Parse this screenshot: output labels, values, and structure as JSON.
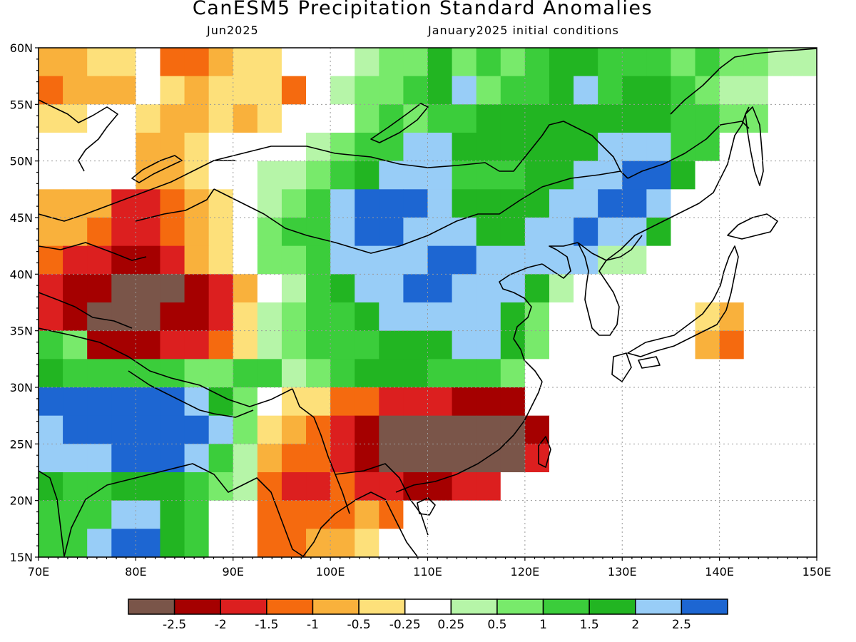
{
  "title": "CanESM5 Precipitation Standard Anomalies",
  "subtitle_left": "Jun2025",
  "subtitle_right": "January2025 initial conditions",
  "lat_labels": [
    "60N",
    "55N",
    "50N",
    "45N",
    "40N",
    "35N",
    "30N",
    "25N",
    "20N",
    "15N"
  ],
  "lon_labels": [
    "70E",
    "80E",
    "90E",
    "100E",
    "110E",
    "120E",
    "130E",
    "140E",
    "150E"
  ],
  "colorbar": {
    "colors": [
      "#7a5549",
      "#a50000",
      "#dc1f1f",
      "#f56a0f",
      "#f9b13c",
      "#fde07a",
      "#ffffff",
      "#b6f5a8",
      "#78ea6b",
      "#3bcd3b",
      "#22b522",
      "#98cdf7",
      "#1d66d2"
    ],
    "tick_labels": [
      "-2.5",
      "-2",
      "-1.5",
      "-1",
      "-0.5",
      "-0.25",
      "0.25",
      "0.5",
      "1",
      "1.5",
      "2",
      "2.5"
    ]
  },
  "grid": {
    "lon_min": 70,
    "lon_max": 150,
    "lat_min": 15,
    "lat_max": 60,
    "cell_deg": 2.5,
    "cols": 32,
    "rows": 18,
    "note_rows_north_to_south": [
      "EEFFGDDEFFGGGHIIKIJIJKKJJJIJIIHH",
      "DEEEGFEFFFDGHIIJKLIJJKLJKKJIHHGG",
      "FFGGFEEFEFGGGIJIJJKKKKKKKKJJIIGG",
      "GGGGEEFGGGGHIJJLLKKKKKKLLLJJGGGG",
      "GGGGEEFGGHHIJKLLLJJJKKLLMMKGGGGG",
      "EEECCDEFGHIJLMMMLKKKKLLMMLGGGGGG",
      "EEDCCDEFGIJJLMMLLLKKLLMLLKGGGGGG",
      "DCCBBCEFGIIJLLLLMMLLLLLHHGGGGGGG",
      "CBBAAABCEGHJKLLMMLLLKHGGGGGGGGGG",
      "CBAAABBCFHIJJKLLLLLKIGGGGGGFEGGG",
      "JIBBBCCDFHIJJJKKKLLKIGGGGGGEDGGG",
      "KJJJJJIIJJHIJKKKJJJIGGGGGGGGGGGG",
      "MMMMMMLKIGFFDDCCCBBBGGGGGGGGGGGG",
      "LMMMMMMLIFEDCBAAAAAABGGGGGGGGGGG",
      "LLLMMMLJHEDDCBAAAAAACGGGGGGGGGGG",
      "KJJKKKJIHDCCDCCBBCCGGGGGGGGGGGGG",
      "JJJLLKJGGDDDDEDGGGGGGGGGGGGGGGGG",
      "JJLMMKJGGDDEEFGGGGGGGGGGGGGGGGGG"
    ]
  }
}
